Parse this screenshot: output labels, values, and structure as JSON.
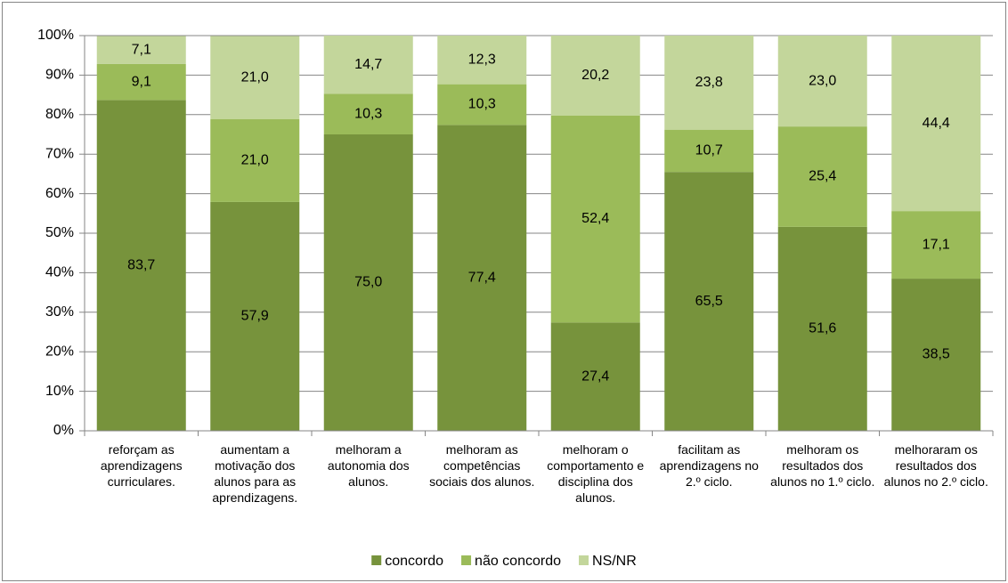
{
  "chart_data": {
    "type": "stacked_bar",
    "categories": [
      "reforçam as aprendizagens curriculares.",
      "aumentam a motivação dos alunos para as aprendizagens.",
      "melhoram a autonomia dos alunos.",
      "melhoram as competências sociais dos alunos.",
      "melhoram o comportamento e disciplina dos alunos.",
      "facilitam as aprendizagens no 2.º ciclo.",
      "melhoram os resultados dos alunos no 1.º ciclo.",
      "melhoraram os resultados dos alunos no 2.º ciclo."
    ],
    "series": [
      {
        "name": "concordo",
        "color": "#77933c",
        "values": [
          83.7,
          57.9,
          75.0,
          77.4,
          27.4,
          65.5,
          51.6,
          38.5
        ],
        "value_labels": [
          "83,7",
          "57,9",
          "75,0",
          "77,4",
          "27,4",
          "65,5",
          "51,6",
          "38,5"
        ]
      },
      {
        "name": "não concordo",
        "color": "#9bbb59",
        "values": [
          9.1,
          21.0,
          10.3,
          10.3,
          52.4,
          10.7,
          25.4,
          17.1
        ],
        "value_labels": [
          "9,1",
          "21,0",
          "10,3",
          "10,3",
          "52,4",
          "10,7",
          "25,4",
          "17,1"
        ]
      },
      {
        "name": "NS/NR",
        "color": "#c3d69b",
        "values": [
          7.1,
          21.0,
          14.7,
          12.3,
          20.2,
          23.8,
          23.0,
          44.4
        ],
        "value_labels": [
          "7,1",
          "21,0",
          "14,7",
          "12,3",
          "20,2",
          "23,8",
          "23,0",
          "44,4"
        ]
      }
    ],
    "ylim": [
      0,
      100
    ],
    "yticks": [
      {
        "value": 0,
        "label": "0%"
      },
      {
        "value": 10,
        "label": "10%"
      },
      {
        "value": 20,
        "label": "20%"
      },
      {
        "value": 30,
        "label": "30%"
      },
      {
        "value": 40,
        "label": "40%"
      },
      {
        "value": 50,
        "label": "50%"
      },
      {
        "value": 60,
        "label": "60%"
      },
      {
        "value": 70,
        "label": "70%"
      },
      {
        "value": 80,
        "label": "80%"
      },
      {
        "value": 90,
        "label": "90%"
      },
      {
        "value": 100,
        "label": "100%"
      }
    ],
    "grid": true,
    "legend": "bottom"
  }
}
